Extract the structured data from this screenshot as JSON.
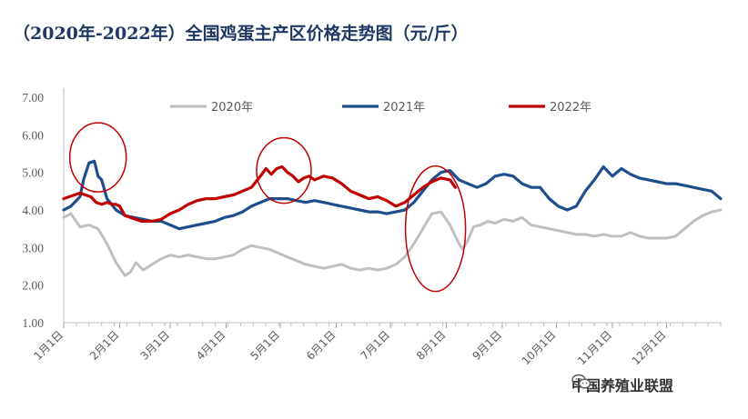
{
  "title": "（2020年-2022年）全国鸡蛋主产区价格走势图（元/斤）",
  "watermark": "中国养殖业联盟",
  "chart_data": {
    "type": "line",
    "title": "（2020年-2022年）全国鸡蛋主产区价格走势图（元/斤）",
    "ylim": [
      1.0,
      7.0
    ],
    "yticks": [
      "1.00",
      "2.00",
      "3.00",
      "4.00",
      "5.00",
      "6.00",
      "7.00"
    ],
    "xlim": [
      1,
      365
    ],
    "xticks": [
      {
        "label": "1月1日",
        "day": 1
      },
      {
        "label": "2月1日",
        "day": 32
      },
      {
        "label": "3月1日",
        "day": 60
      },
      {
        "label": "4月1日",
        "day": 91
      },
      {
        "label": "5月1日",
        "day": 121
      },
      {
        "label": "6月1日",
        "day": 152
      },
      {
        "label": "7月1日",
        "day": 182
      },
      {
        "label": "8月1日",
        "day": 213
      },
      {
        "label": "9月1日",
        "day": 244
      },
      {
        "label": "10月1日",
        "day": 274
      },
      {
        "label": "11月1日",
        "day": 305
      },
      {
        "label": "12月1日",
        "day": 335
      }
    ],
    "legend_position": "top",
    "series": [
      {
        "name": "2020年",
        "color": "#c0c0c0",
        "x": [
          1,
          5,
          10,
          15,
          20,
          25,
          30,
          35,
          38,
          41,
          45,
          50,
          55,
          60,
          65,
          70,
          75,
          80,
          85,
          90,
          95,
          100,
          105,
          110,
          115,
          120,
          125,
          130,
          135,
          140,
          145,
          150,
          155,
          160,
          165,
          170,
          175,
          180,
          185,
          190,
          195,
          200,
          205,
          210,
          215,
          220,
          222,
          225,
          228,
          232,
          236,
          240,
          245,
          250,
          255,
          260,
          265,
          270,
          275,
          280,
          285,
          290,
          295,
          300,
          305,
          310,
          315,
          320,
          325,
          330,
          335,
          340,
          345,
          350,
          355,
          360,
          365
        ],
        "y": [
          3.8,
          3.9,
          3.55,
          3.6,
          3.5,
          3.1,
          2.6,
          2.25,
          2.35,
          2.6,
          2.4,
          2.55,
          2.7,
          2.8,
          2.75,
          2.8,
          2.75,
          2.7,
          2.7,
          2.75,
          2.8,
          2.95,
          3.05,
          3.0,
          2.95,
          2.85,
          2.75,
          2.65,
          2.55,
          2.5,
          2.45,
          2.5,
          2.55,
          2.45,
          2.4,
          2.45,
          2.4,
          2.45,
          2.55,
          2.75,
          3.1,
          3.5,
          3.9,
          3.95,
          3.6,
          3.1,
          2.95,
          3.2,
          3.55,
          3.6,
          3.7,
          3.65,
          3.75,
          3.7,
          3.8,
          3.6,
          3.55,
          3.5,
          3.45,
          3.4,
          3.35,
          3.35,
          3.3,
          3.35,
          3.3,
          3.3,
          3.4,
          3.3,
          3.25,
          3.25,
          3.25,
          3.3,
          3.5,
          3.7,
          3.85,
          3.95,
          4.0
        ]
      },
      {
        "name": "2021年",
        "color": "#1f4e8c",
        "x": [
          1,
          5,
          10,
          12,
          15,
          18,
          20,
          22,
          25,
          30,
          35,
          40,
          45,
          50,
          55,
          60,
          65,
          70,
          75,
          80,
          85,
          90,
          95,
          100,
          105,
          110,
          115,
          120,
          125,
          130,
          135,
          140,
          145,
          150,
          155,
          160,
          165,
          170,
          175,
          180,
          185,
          190,
          195,
          200,
          205,
          210,
          215,
          220,
          225,
          230,
          235,
          240,
          245,
          250,
          255,
          260,
          265,
          270,
          275,
          280,
          285,
          290,
          295,
          300,
          305,
          310,
          315,
          320,
          325,
          330,
          335,
          340,
          345,
          350,
          355,
          360,
          365
        ],
        "y": [
          4.0,
          4.1,
          4.35,
          4.8,
          5.25,
          5.3,
          4.9,
          4.8,
          4.3,
          4.0,
          3.85,
          3.8,
          3.75,
          3.7,
          3.7,
          3.6,
          3.5,
          3.55,
          3.6,
          3.65,
          3.7,
          3.8,
          3.85,
          3.95,
          4.1,
          4.2,
          4.3,
          4.3,
          4.3,
          4.25,
          4.2,
          4.25,
          4.2,
          4.15,
          4.1,
          4.05,
          4.0,
          3.95,
          3.95,
          3.9,
          3.95,
          4.0,
          4.2,
          4.5,
          4.8,
          5.0,
          5.05,
          4.8,
          4.7,
          4.6,
          4.7,
          4.9,
          4.95,
          4.9,
          4.7,
          4.6,
          4.6,
          4.3,
          4.1,
          4.0,
          4.1,
          4.5,
          4.8,
          5.15,
          4.9,
          5.1,
          4.95,
          4.85,
          4.8,
          4.75,
          4.7,
          4.7,
          4.65,
          4.6,
          4.55,
          4.5,
          4.3
        ]
      },
      {
        "name": "2022年",
        "color": "#c00000",
        "x": [
          1,
          4,
          7,
          10,
          13,
          16,
          19,
          22,
          25,
          28,
          30,
          32,
          35,
          38,
          41,
          44,
          47,
          50,
          55,
          60,
          65,
          70,
          75,
          80,
          85,
          90,
          95,
          100,
          105,
          110,
          113,
          116,
          119,
          122,
          125,
          128,
          131,
          134,
          137,
          140,
          145,
          150,
          155,
          160,
          165,
          170,
          175,
          180,
          185,
          190,
          195,
          200,
          205,
          210,
          215,
          218
        ],
        "y": [
          4.3,
          4.35,
          4.4,
          4.45,
          4.4,
          4.35,
          4.2,
          4.15,
          4.2,
          4.15,
          4.15,
          4.1,
          3.85,
          3.8,
          3.75,
          3.7,
          3.7,
          3.7,
          3.75,
          3.9,
          4.0,
          4.15,
          4.25,
          4.3,
          4.3,
          4.35,
          4.4,
          4.5,
          4.6,
          4.9,
          5.1,
          4.95,
          5.1,
          5.15,
          5.0,
          4.9,
          4.75,
          4.85,
          4.9,
          4.8,
          4.9,
          4.85,
          4.7,
          4.5,
          4.4,
          4.3,
          4.35,
          4.25,
          4.1,
          4.2,
          4.4,
          4.6,
          4.75,
          4.85,
          4.8,
          4.6
        ]
      }
    ],
    "annotations": [
      "highlight-circles"
    ]
  }
}
